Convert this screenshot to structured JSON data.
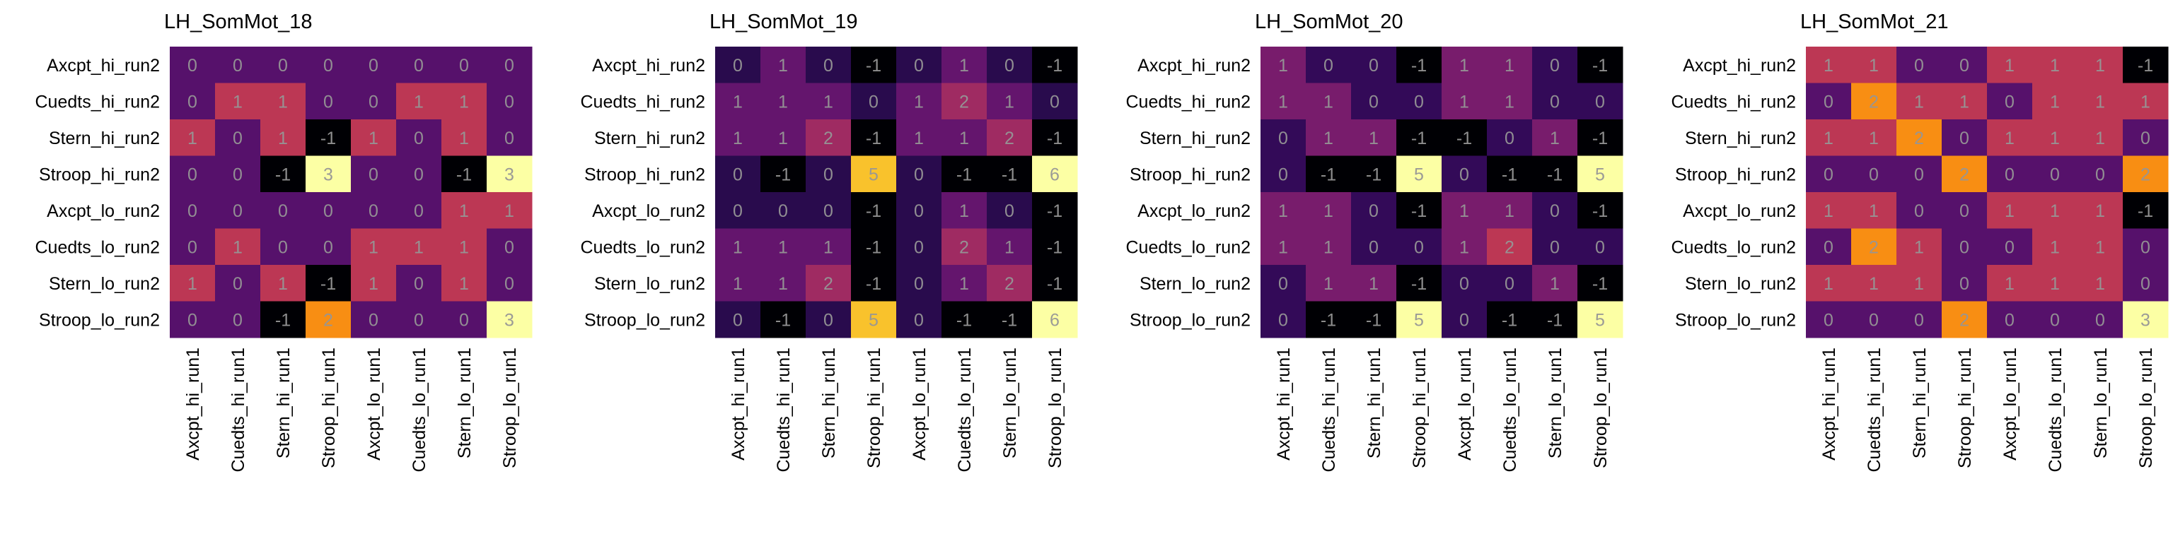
{
  "chart_data": [
    {
      "type": "heatmap",
      "title": "LH_SomMot_18",
      "row_labels": [
        "Axcpt_hi_run2",
        "Cuedts_hi_run2",
        "Stern_hi_run2",
        "Stroop_hi_run2",
        "Axcpt_lo_run2",
        "Cuedts_lo_run2",
        "Stern_lo_run2",
        "Stroop_lo_run2"
      ],
      "col_labels": [
        "Axcpt_hi_run1",
        "Cuedts_hi_run1",
        "Stern_hi_run1",
        "Stroop_hi_run1",
        "Axcpt_lo_run1",
        "Cuedts_lo_run1",
        "Stern_lo_run1",
        "Stroop_lo_run1"
      ],
      "values": [
        [
          0,
          0,
          0,
          0,
          0,
          0,
          0,
          0
        ],
        [
          0,
          1,
          1,
          0,
          0,
          1,
          1,
          0
        ],
        [
          1,
          0,
          1,
          -1,
          1,
          0,
          1,
          0
        ],
        [
          0,
          0,
          -1,
          3,
          0,
          0,
          -1,
          3
        ],
        [
          0,
          0,
          0,
          0,
          0,
          0,
          1,
          1
        ],
        [
          0,
          1,
          0,
          0,
          1,
          1,
          1,
          0
        ],
        [
          1,
          0,
          1,
          -1,
          1,
          0,
          1,
          0
        ],
        [
          0,
          0,
          -1,
          2,
          0,
          0,
          0,
          3
        ]
      ],
      "color_scale": "inferno",
      "vmin": -1,
      "vmax": 3
    },
    {
      "type": "heatmap",
      "title": "LH_SomMot_19",
      "row_labels": [
        "Axcpt_hi_run2",
        "Cuedts_hi_run2",
        "Stern_hi_run2",
        "Stroop_hi_run2",
        "Axcpt_lo_run2",
        "Cuedts_lo_run2",
        "Stern_lo_run2",
        "Stroop_lo_run2"
      ],
      "col_labels": [
        "Axcpt_hi_run1",
        "Cuedts_hi_run1",
        "Stern_hi_run1",
        "Stroop_hi_run1",
        "Axcpt_lo_run1",
        "Cuedts_lo_run1",
        "Stern_lo_run1",
        "Stroop_lo_run1"
      ],
      "values": [
        [
          0,
          1,
          0,
          -1,
          0,
          1,
          0,
          -1
        ],
        [
          1,
          1,
          1,
          0,
          1,
          2,
          1,
          0
        ],
        [
          1,
          1,
          2,
          -1,
          1,
          1,
          2,
          -1
        ],
        [
          0,
          -1,
          0,
          5,
          0,
          -1,
          -1,
          6
        ],
        [
          0,
          0,
          0,
          -1,
          0,
          1,
          0,
          -1
        ],
        [
          1,
          1,
          1,
          -1,
          0,
          2,
          1,
          -1
        ],
        [
          1,
          1,
          2,
          -1,
          0,
          1,
          2,
          -1
        ],
        [
          0,
          -1,
          0,
          5,
          0,
          -1,
          -1,
          6
        ]
      ],
      "color_scale": "inferno",
      "vmin": -1,
      "vmax": 6
    },
    {
      "type": "heatmap",
      "title": "LH_SomMot_20",
      "row_labels": [
        "Axcpt_hi_run2",
        "Cuedts_hi_run2",
        "Stern_hi_run2",
        "Stroop_hi_run2",
        "Axcpt_lo_run2",
        "Cuedts_lo_run2",
        "Stern_lo_run2",
        "Stroop_lo_run2"
      ],
      "col_labels": [
        "Axcpt_hi_run1",
        "Cuedts_hi_run1",
        "Stern_hi_run1",
        "Stroop_hi_run1",
        "Axcpt_lo_run1",
        "Cuedts_lo_run1",
        "Stern_lo_run1",
        "Stroop_lo_run1"
      ],
      "values": [
        [
          1,
          0,
          0,
          -1,
          1,
          1,
          0,
          -1
        ],
        [
          1,
          1,
          0,
          0,
          1,
          1,
          0,
          0
        ],
        [
          0,
          1,
          1,
          -1,
          -1,
          0,
          1,
          -1
        ],
        [
          0,
          -1,
          -1,
          5,
          0,
          -1,
          -1,
          5
        ],
        [
          1,
          1,
          0,
          -1,
          1,
          1,
          0,
          -1
        ],
        [
          1,
          1,
          0,
          0,
          1,
          2,
          0,
          0
        ],
        [
          0,
          1,
          1,
          -1,
          0,
          0,
          1,
          -1
        ],
        [
          0,
          -1,
          -1,
          5,
          0,
          -1,
          -1,
          5
        ]
      ],
      "color_scale": "inferno",
      "vmin": -1,
      "vmax": 5
    },
    {
      "type": "heatmap",
      "title": "LH_SomMot_21",
      "row_labels": [
        "Axcpt_hi_run2",
        "Cuedts_hi_run2",
        "Stern_hi_run2",
        "Stroop_hi_run2",
        "Axcpt_lo_run2",
        "Cuedts_lo_run2",
        "Stern_lo_run2",
        "Stroop_lo_run2"
      ],
      "col_labels": [
        "Axcpt_hi_run1",
        "Cuedts_hi_run1",
        "Stern_hi_run1",
        "Stroop_hi_run1",
        "Axcpt_lo_run1",
        "Cuedts_lo_run1",
        "Stern_lo_run1",
        "Stroop_lo_run1"
      ],
      "values": [
        [
          1,
          1,
          0,
          0,
          1,
          1,
          1,
          -1
        ],
        [
          0,
          2,
          1,
          1,
          0,
          1,
          1,
          1
        ],
        [
          1,
          1,
          2,
          0,
          1,
          1,
          1,
          0
        ],
        [
          0,
          0,
          0,
          2,
          0,
          0,
          0,
          2
        ],
        [
          1,
          1,
          0,
          0,
          1,
          1,
          1,
          -1
        ],
        [
          0,
          2,
          1,
          0,
          0,
          1,
          1,
          0
        ],
        [
          1,
          1,
          1,
          0,
          1,
          1,
          1,
          0
        ],
        [
          0,
          0,
          0,
          2,
          0,
          0,
          0,
          3
        ]
      ],
      "color_scale": "inferno",
      "vmin": -1,
      "vmax": 3
    }
  ]
}
